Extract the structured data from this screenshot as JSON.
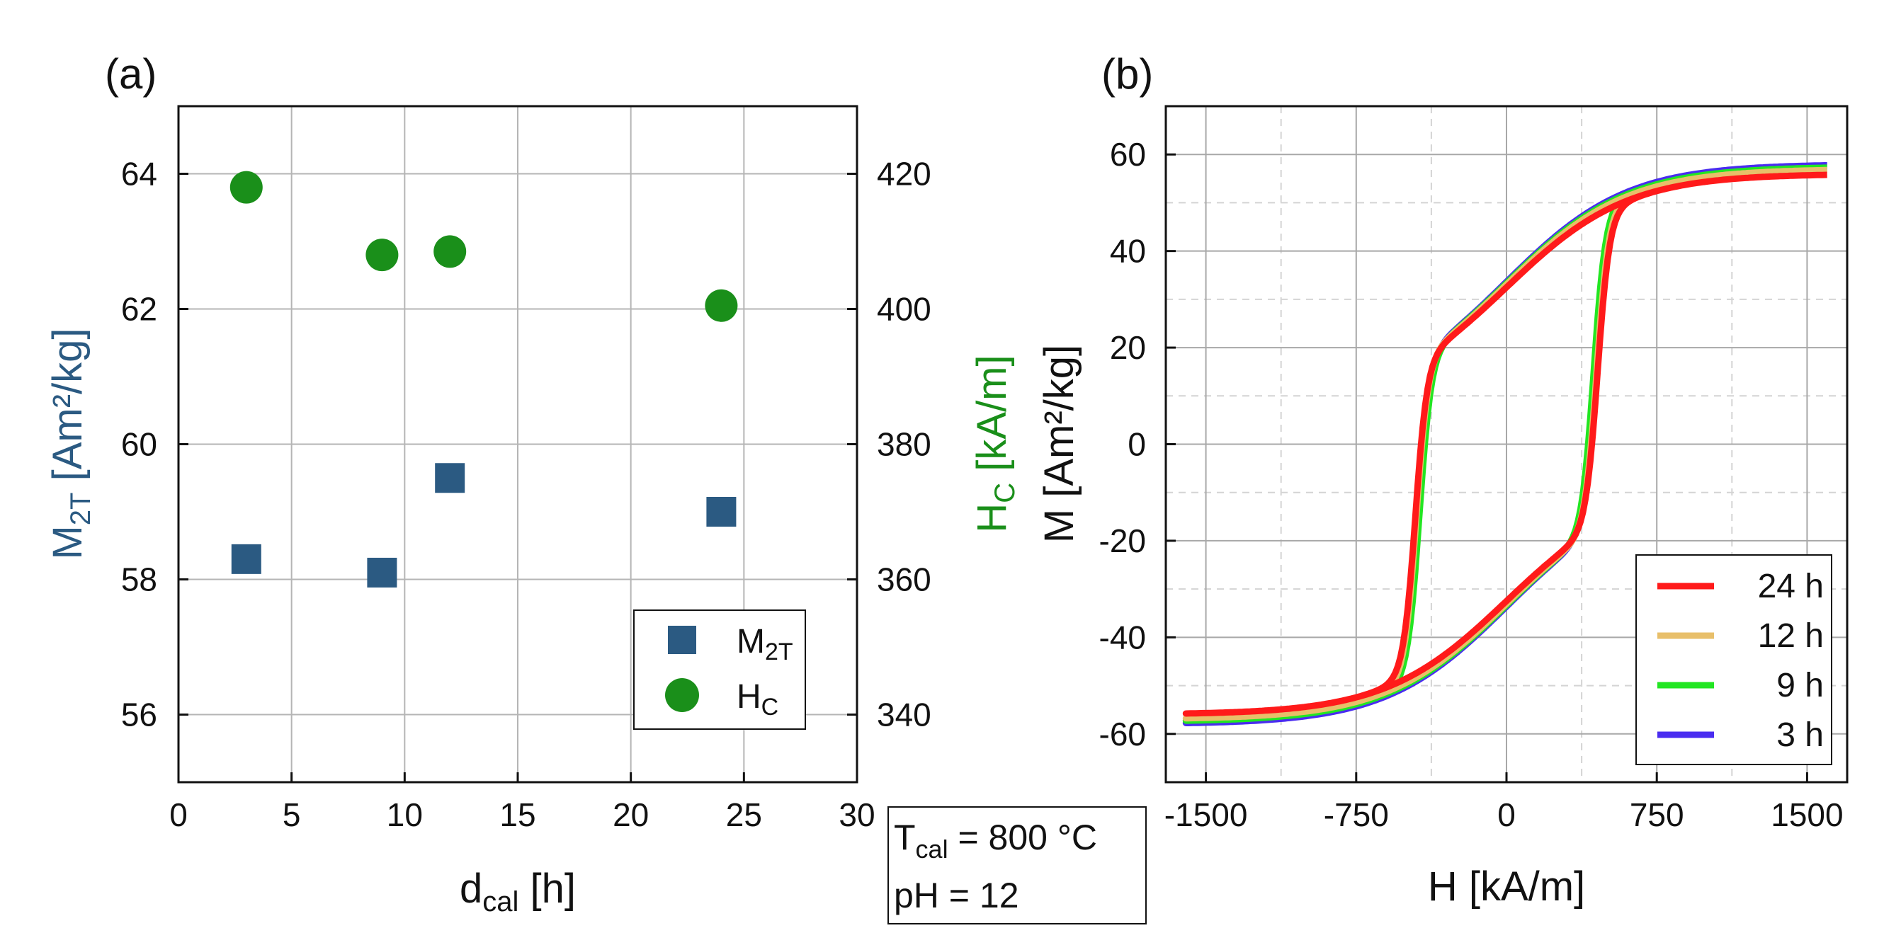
{
  "chart_data": [
    {
      "panel": "(a)",
      "type": "scatter",
      "xlabel": "d",
      "xlabel_sub": "cal",
      "xlabel_unit": " [h]",
      "xlim": [
        0,
        30
      ],
      "xticks": [
        0,
        5,
        10,
        15,
        20,
        25,
        30
      ],
      "ylabel_left": "M",
      "ylabel_left_sub": "2T",
      "ylabel_left_unit": " [Am²/kg]",
      "ylim_left": [
        55,
        65
      ],
      "yticks_left": [
        56,
        58,
        60,
        62,
        64
      ],
      "ylabel_right": "H",
      "ylabel_right_sub": "C",
      "ylabel_right_unit": " [kA/m]",
      "ylim_right": [
        330,
        430
      ],
      "yticks_right": [
        340,
        360,
        380,
        400,
        420
      ],
      "grid": true,
      "legend_position": "bottom-right",
      "series": [
        {
          "name": "M",
          "name_sub": "2T",
          "axis": "left",
          "marker": "square",
          "color": "#2b5a82",
          "x": [
            3,
            9,
            12,
            24
          ],
          "y": [
            58.3,
            58.1,
            59.5,
            59.0
          ]
        },
        {
          "name": "H",
          "name_sub": "C",
          "axis": "right",
          "marker": "circle",
          "color": "#1a8f1a",
          "x": [
            3,
            9,
            12,
            24
          ],
          "y": [
            418,
            408,
            408.5,
            400.5
          ]
        }
      ]
    },
    {
      "panel": "(b)",
      "type": "line",
      "xlabel": "H [kA/m]",
      "ylabel": "M [Am²/kg]",
      "xlim": [
        -1700,
        1700
      ],
      "xticks": [
        -1500,
        -750,
        0,
        750,
        1500
      ],
      "ylim": [
        -70,
        70
      ],
      "yticks": [
        -60,
        -40,
        -20,
        0,
        20,
        40,
        60
      ],
      "grid": true,
      "legend_position": "bottom-right",
      "series": [
        {
          "name": "24 h",
          "color": "#ff1a1a",
          "Ms": 56,
          "Hc": 455
        },
        {
          "name": "12 h",
          "color": "#e8bf6a",
          "Ms": 57,
          "Hc": 450
        },
        {
          "name": "9 h",
          "color": "#22e622",
          "Ms": 57.5,
          "Hc": 435
        },
        {
          "name": "3 h",
          "color": "#4a2cf0",
          "Ms": 58,
          "Hc": 440
        }
      ]
    }
  ],
  "conditions": {
    "line1_var": "T",
    "line1_sub": "cal",
    "line1_value": " = 800 °C",
    "line2": "pH = 12"
  }
}
